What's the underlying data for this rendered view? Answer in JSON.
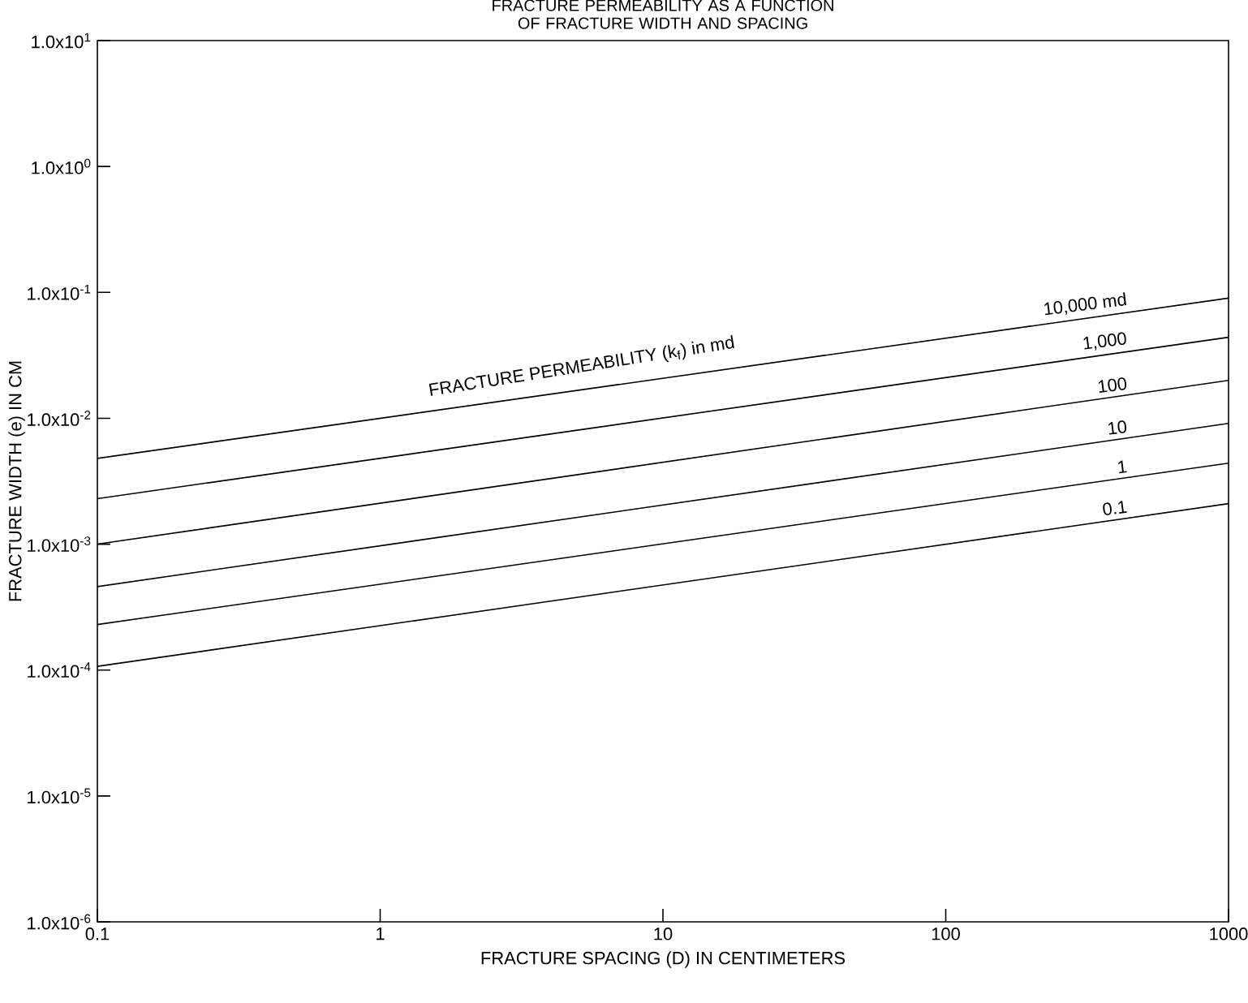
{
  "chart_data": {
    "type": "line",
    "title": "FRACTURE PERMEABILITY AS A FUNCTION OF FRACTURE WIDTH AND SPACING",
    "xlabel": "FRACTURE SPACING (D) IN CENTIMETERS",
    "ylabel": "FRACTURE WIDTH (e) IN CM",
    "log": "xy",
    "annotations": [
      "FRACTURE PERMEABILITY (k$_{f}$) in md"
    ],
    "x": [
      0.1,
      1000
    ],
    "series": [
      {
        "name": "10,000 md",
        "color": "#000000",
        "values": [
          0.0048,
          0.09
        ]
      },
      {
        "name": "1,000",
        "color": "#000000",
        "values": [
          0.0023,
          0.044
        ]
      },
      {
        "name": "100",
        "color": "#000000",
        "values": [
          0.001,
          0.02
        ]
      },
      {
        "name": "10",
        "color": "#000000",
        "values": [
          0.00046,
          0.0091
        ]
      },
      {
        "name": "1",
        "color": "#000000",
        "values": [
          0.00023,
          0.0044
        ]
      },
      {
        "name": "0.1",
        "color": "#000000",
        "values": [
          0.000107,
          0.0021
        ]
      }
    ],
    "xlim": [
      0.1,
      1000
    ],
    "ylim": [
      1e-06,
      10
    ],
    "xticks": [
      0.1,
      1,
      10,
      100,
      1000
    ],
    "yticks": [
      {
        "value": 1e-06,
        "label": "1.0x10$^{-6}$"
      },
      {
        "value": 1e-05,
        "label": "1.0x10$^{-5}$"
      },
      {
        "value": 0.0001,
        "label": "1.0x10$^{-4}$"
      },
      {
        "value": 0.001,
        "label": "1.0x10$^{-3}$"
      },
      {
        "value": 0.01,
        "label": "1.0x10$^{-2}$"
      },
      {
        "value": 0.1,
        "label": "1.0x10$^{-1}$"
      },
      {
        "value": 1,
        "label": "1.0x10$^{0}$"
      },
      {
        "value": 10,
        "label": "1.0x10$^{1}$"
      }
    ]
  }
}
